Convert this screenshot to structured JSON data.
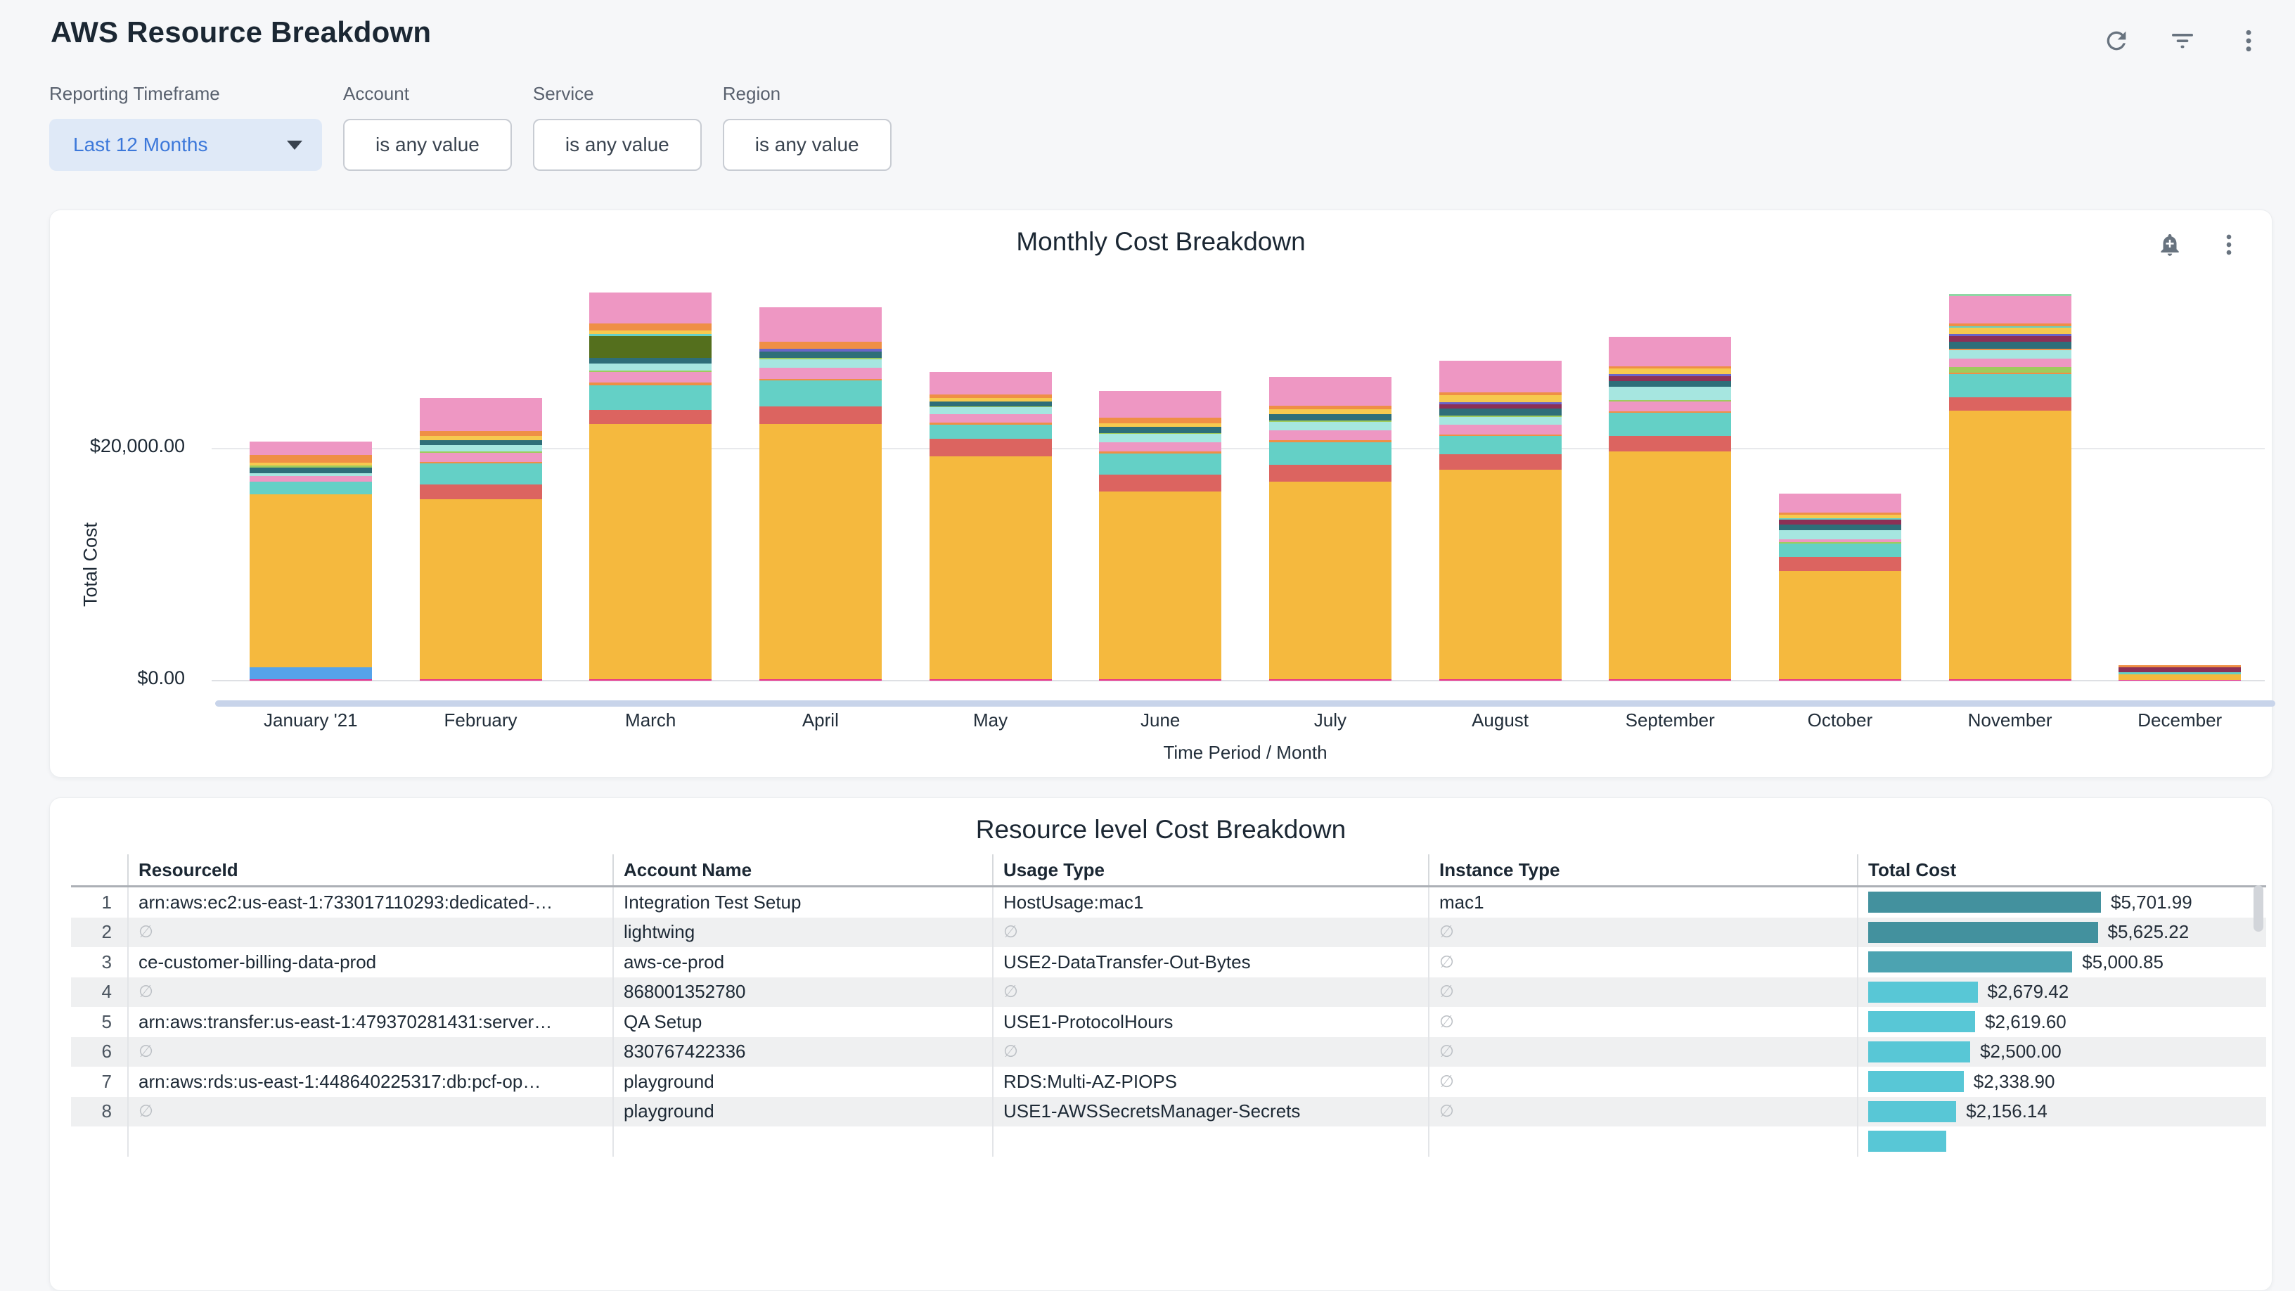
{
  "page": {
    "title": "AWS Resource Breakdown"
  },
  "header_icons": {
    "refresh": "refresh",
    "filter": "filter",
    "more": "more"
  },
  "filters": [
    {
      "label": "Reporting Timeframe",
      "value": "Last 12 Months",
      "style": "dropdown"
    },
    {
      "label": "Account",
      "value": "is any value",
      "style": "outline"
    },
    {
      "label": "Service",
      "value": "is any value",
      "style": "outline"
    },
    {
      "label": "Region",
      "value": "is any value",
      "style": "outline"
    }
  ],
  "chart_card": {
    "title": "Monthly Cost Breakdown"
  },
  "chart_data": {
    "type": "bar",
    "stacked": true,
    "legend": false,
    "title": "Monthly Cost Breakdown",
    "xlabel": "Time Period / Month",
    "ylabel": "Total Cost",
    "ylim": [
      0,
      35000
    ],
    "y_ticks": [
      {
        "label": "$0.00",
        "value": 0
      },
      {
        "label": "$20,000.00",
        "value": 20000
      }
    ],
    "categories": [
      "January '21",
      "February",
      "March",
      "April",
      "May",
      "June",
      "July",
      "August",
      "September",
      "October",
      "November",
      "December"
    ],
    "totals_approx_usd": [
      20590,
      24380,
      33455,
      32185,
      26590,
      24960,
      26210,
      27590,
      29640,
      16110,
      33350,
      1340
    ],
    "palette": {
      "magenta": "#E72F8D",
      "blue": "#55A3EA",
      "yellow": "#F5B93E",
      "yellow2": "#F6C94F",
      "red": "#DC6460",
      "teal": "#64D0C6",
      "orange": "#EF8F45",
      "pink": "#EE97C3",
      "lightcyan": "#A6E6E0",
      "darkteal": "#2E6E79",
      "olive": "#546F1D",
      "maroon": "#8C3056",
      "purple": "#6A64C7",
      "green": "#9ECB5D",
      "lightgreen": "#8FD7A5"
    },
    "bars": [
      {
        "segments": [
          [
            "magenta",
            130
          ],
          [
            "blue",
            1000
          ],
          [
            "yellow",
            14950
          ],
          [
            "teal",
            1100
          ],
          [
            "pink",
            430
          ],
          [
            "lightcyan",
            300
          ],
          [
            "darkteal",
            430
          ],
          [
            "green",
            180
          ],
          [
            "yellow2",
            300
          ],
          [
            "orange",
            610
          ],
          [
            "pink",
            1160
          ]
        ]
      },
      {
        "segments": [
          [
            "magenta",
            130
          ],
          [
            "yellow",
            15500
          ],
          [
            "red",
            1250
          ],
          [
            "teal",
            1850
          ],
          [
            "orange",
            150
          ],
          [
            "pink",
            750
          ],
          [
            "green",
            100
          ],
          [
            "lightcyan",
            550
          ],
          [
            "darkteal",
            450
          ],
          [
            "yellow2",
            350
          ],
          [
            "orange",
            450
          ],
          [
            "pink",
            2850
          ]
        ]
      },
      {
        "segments": [
          [
            "magenta",
            130
          ],
          [
            "yellow",
            22000
          ],
          [
            "red",
            1220
          ],
          [
            "teal",
            2130
          ],
          [
            "orange",
            240
          ],
          [
            "pink",
            915
          ],
          [
            "green",
            120
          ],
          [
            "lightcyan",
            610
          ],
          [
            "darkteal",
            430
          ],
          [
            "olive",
            1890
          ],
          [
            "teal",
            180
          ],
          [
            "yellow2",
            300
          ],
          [
            "orange",
            610
          ],
          [
            "pink",
            2680
          ]
        ]
      },
      {
        "segments": [
          [
            "magenta",
            130
          ],
          [
            "yellow",
            22000
          ],
          [
            "red",
            1520
          ],
          [
            "teal",
            2200
          ],
          [
            "orange",
            180
          ],
          [
            "pink",
            915
          ],
          [
            "lightcyan",
            730
          ],
          [
            "green",
            120
          ],
          [
            "darkteal",
            550
          ],
          [
            "purple",
            240
          ],
          [
            "orange",
            610
          ],
          [
            "pink",
            2990
          ]
        ]
      },
      {
        "segments": [
          [
            "magenta",
            130
          ],
          [
            "yellow",
            19200
          ],
          [
            "red",
            1520
          ],
          [
            "teal",
            1220
          ],
          [
            "orange",
            150
          ],
          [
            "pink",
            730
          ],
          [
            "lightcyan",
            610
          ],
          [
            "green",
            100
          ],
          [
            "darkteal",
            430
          ],
          [
            "yellow2",
            250
          ],
          [
            "orange",
            350
          ],
          [
            "pink",
            1900
          ]
        ]
      },
      {
        "segments": [
          [
            "magenta",
            130
          ],
          [
            "yellow",
            16200
          ],
          [
            "red",
            1400
          ],
          [
            "teal",
            1850
          ],
          [
            "orange",
            180
          ],
          [
            "pink",
            800
          ],
          [
            "lightcyan",
            700
          ],
          [
            "green",
            100
          ],
          [
            "darkteal",
            500
          ],
          [
            "yellow2",
            300
          ],
          [
            "orange",
            500
          ],
          [
            "pink",
            2300
          ]
        ]
      },
      {
        "segments": [
          [
            "magenta",
            130
          ],
          [
            "yellow",
            17000
          ],
          [
            "red",
            1500
          ],
          [
            "teal",
            1900
          ],
          [
            "orange",
            180
          ],
          [
            "pink",
            850
          ],
          [
            "lightcyan",
            750
          ],
          [
            "green",
            100
          ],
          [
            "darkteal",
            550
          ],
          [
            "yellow2",
            450
          ],
          [
            "orange",
            300
          ],
          [
            "pink",
            2500
          ]
        ]
      },
      {
        "segments": [
          [
            "magenta",
            130
          ],
          [
            "yellow",
            18050
          ],
          [
            "red",
            1340
          ],
          [
            "teal",
            1580
          ],
          [
            "orange",
            120
          ],
          [
            "pink",
            850
          ],
          [
            "lightcyan",
            670
          ],
          [
            "green",
            100
          ],
          [
            "darkteal",
            610
          ],
          [
            "maroon",
            370
          ],
          [
            "purple",
            180
          ],
          [
            "yellow2",
            610
          ],
          [
            "orange",
            240
          ],
          [
            "pink",
            2740
          ]
        ]
      },
      {
        "segments": [
          [
            "magenta",
            130
          ],
          [
            "yellow",
            19640
          ],
          [
            "red",
            1340
          ],
          [
            "teal",
            2010
          ],
          [
            "orange",
            120
          ],
          [
            "pink",
            850
          ],
          [
            "green",
            120
          ],
          [
            "lightcyan",
            1100
          ],
          [
            "darkteal",
            490
          ],
          [
            "maroon",
            430
          ],
          [
            "purple",
            180
          ],
          [
            "yellow2",
            490
          ],
          [
            "orange",
            180
          ],
          [
            "pink",
            2560
          ]
        ]
      },
      {
        "segments": [
          [
            "magenta",
            130
          ],
          [
            "yellow",
            9330
          ],
          [
            "red",
            1220
          ],
          [
            "teal",
            1160
          ],
          [
            "green",
            120
          ],
          [
            "pink",
            250
          ],
          [
            "lightcyan",
            790
          ],
          [
            "darkteal",
            430
          ],
          [
            "maroon",
            430
          ],
          [
            "teal",
            120
          ],
          [
            "yellow2",
            300
          ],
          [
            "orange",
            240
          ],
          [
            "pink",
            1590
          ]
        ]
      },
      {
        "segments": [
          [
            "magenta",
            130
          ],
          [
            "yellow",
            23170
          ],
          [
            "red",
            1100
          ],
          [
            "teal",
            2010
          ],
          [
            "orange",
            120
          ],
          [
            "green",
            490
          ],
          [
            "pink",
            730
          ],
          [
            "lightcyan",
            730
          ],
          [
            "orange",
            120
          ],
          [
            "darkteal",
            610
          ],
          [
            "maroon",
            490
          ],
          [
            "purple",
            180
          ],
          [
            "yellow2",
            550
          ],
          [
            "teal",
            120
          ],
          [
            "orange",
            240
          ],
          [
            "pink",
            2380
          ],
          [
            "lightgreen",
            180
          ]
        ]
      },
      {
        "segments": [
          [
            "magenta",
            60
          ],
          [
            "yellow",
            490
          ],
          [
            "teal",
            180
          ],
          [
            "maroon",
            430
          ],
          [
            "orange",
            180
          ]
        ]
      }
    ]
  },
  "table_card": {
    "title": "Resource level Cost Breakdown",
    "columns": [
      "ResourceId",
      "Account Name",
      "Usage Type",
      "Instance Type",
      "Total Cost"
    ],
    "null_glyph": "∅",
    "max_bar_value": 5702,
    "rows": [
      {
        "n": "1",
        "resource": "arn:aws:ec2:us-east-1:733017110293:dedicated-…",
        "account": "Integration Test Setup",
        "usage": "HostUsage:mac1",
        "instance": "mac1",
        "cost": "$5,701.99",
        "amount": 5701.99,
        "bar_color": "#43919E"
      },
      {
        "n": "2",
        "resource": "∅",
        "account": "lightwing",
        "usage": "∅",
        "instance": "∅",
        "cost": "$5,625.22",
        "amount": 5625.22,
        "bar_color": "#43919E"
      },
      {
        "n": "3",
        "resource": "ce-customer-billing-data-prod",
        "account": "aws-ce-prod",
        "usage": "USE2-DataTransfer-Out-Bytes",
        "instance": "∅",
        "cost": "$5,000.85",
        "amount": 5000.85,
        "bar_color": "#4CA3B1"
      },
      {
        "n": "4",
        "resource": "∅",
        "account": "868001352780",
        "usage": "∅",
        "instance": "∅",
        "cost": "$2,679.42",
        "amount": 2679.42,
        "bar_color": "#58C7D6"
      },
      {
        "n": "5",
        "resource": "arn:aws:transfer:us-east-1:479370281431:server…",
        "account": "QA Setup",
        "usage": "USE1-ProtocolHours",
        "instance": "∅",
        "cost": "$2,619.60",
        "amount": 2619.6,
        "bar_color": "#58C7D6"
      },
      {
        "n": "6",
        "resource": "∅",
        "account": "830767422336",
        "usage": "∅",
        "instance": "∅",
        "cost": "$2,500.00",
        "amount": 2500.0,
        "bar_color": "#58C7D6"
      },
      {
        "n": "7",
        "resource": "arn:aws:rds:us-east-1:448640225317:db:pcf-op…",
        "account": "playground",
        "usage": "RDS:Multi-AZ-PIOPS",
        "instance": "∅",
        "cost": "$2,338.90",
        "amount": 2338.9,
        "bar_color": "#58C7D6"
      },
      {
        "n": "8",
        "resource": "∅",
        "account": "playground",
        "usage": "USE1-AWSSecretsManager-Secrets",
        "instance": "∅",
        "cost": "$2,156.14",
        "amount": 2156.14,
        "bar_color": "#58C7D6"
      },
      {
        "n": "",
        "resource": "",
        "account": "",
        "usage": "",
        "instance": "",
        "cost": "",
        "amount": 1912,
        "bar_color": "#58C7D6"
      }
    ]
  }
}
